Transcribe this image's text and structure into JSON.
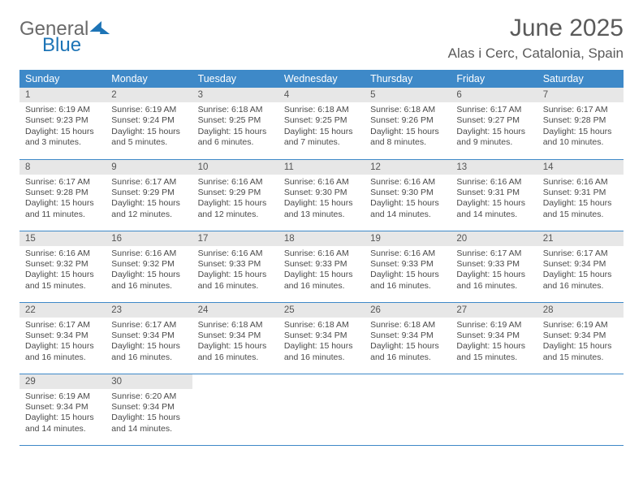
{
  "logo": {
    "part1": "General",
    "part2": "Blue"
  },
  "title": "June 2025",
  "location": "Alas i Cerc, Catalonia, Spain",
  "colors": {
    "header_bg": "#3e89c8",
    "header_text": "#ffffff",
    "daynum_bg": "#e7e7e7",
    "border": "#3e89c8",
    "logo_blue": "#1d74b6"
  },
  "weekdays": [
    "Sunday",
    "Monday",
    "Tuesday",
    "Wednesday",
    "Thursday",
    "Friday",
    "Saturday"
  ],
  "days": [
    {
      "n": 1,
      "sr": "6:19 AM",
      "ss": "9:23 PM",
      "dl": "15 hours and 3 minutes."
    },
    {
      "n": 2,
      "sr": "6:19 AM",
      "ss": "9:24 PM",
      "dl": "15 hours and 5 minutes."
    },
    {
      "n": 3,
      "sr": "6:18 AM",
      "ss": "9:25 PM",
      "dl": "15 hours and 6 minutes."
    },
    {
      "n": 4,
      "sr": "6:18 AM",
      "ss": "9:25 PM",
      "dl": "15 hours and 7 minutes."
    },
    {
      "n": 5,
      "sr": "6:18 AM",
      "ss": "9:26 PM",
      "dl": "15 hours and 8 minutes."
    },
    {
      "n": 6,
      "sr": "6:17 AM",
      "ss": "9:27 PM",
      "dl": "15 hours and 9 minutes."
    },
    {
      "n": 7,
      "sr": "6:17 AM",
      "ss": "9:28 PM",
      "dl": "15 hours and 10 minutes."
    },
    {
      "n": 8,
      "sr": "6:17 AM",
      "ss": "9:28 PM",
      "dl": "15 hours and 11 minutes."
    },
    {
      "n": 9,
      "sr": "6:17 AM",
      "ss": "9:29 PM",
      "dl": "15 hours and 12 minutes."
    },
    {
      "n": 10,
      "sr": "6:16 AM",
      "ss": "9:29 PM",
      "dl": "15 hours and 12 minutes."
    },
    {
      "n": 11,
      "sr": "6:16 AM",
      "ss": "9:30 PM",
      "dl": "15 hours and 13 minutes."
    },
    {
      "n": 12,
      "sr": "6:16 AM",
      "ss": "9:30 PM",
      "dl": "15 hours and 14 minutes."
    },
    {
      "n": 13,
      "sr": "6:16 AM",
      "ss": "9:31 PM",
      "dl": "15 hours and 14 minutes."
    },
    {
      "n": 14,
      "sr": "6:16 AM",
      "ss": "9:31 PM",
      "dl": "15 hours and 15 minutes."
    },
    {
      "n": 15,
      "sr": "6:16 AM",
      "ss": "9:32 PM",
      "dl": "15 hours and 15 minutes."
    },
    {
      "n": 16,
      "sr": "6:16 AM",
      "ss": "9:32 PM",
      "dl": "15 hours and 16 minutes."
    },
    {
      "n": 17,
      "sr": "6:16 AM",
      "ss": "9:33 PM",
      "dl": "15 hours and 16 minutes."
    },
    {
      "n": 18,
      "sr": "6:16 AM",
      "ss": "9:33 PM",
      "dl": "15 hours and 16 minutes."
    },
    {
      "n": 19,
      "sr": "6:16 AM",
      "ss": "9:33 PM",
      "dl": "15 hours and 16 minutes."
    },
    {
      "n": 20,
      "sr": "6:17 AM",
      "ss": "9:33 PM",
      "dl": "15 hours and 16 minutes."
    },
    {
      "n": 21,
      "sr": "6:17 AM",
      "ss": "9:34 PM",
      "dl": "15 hours and 16 minutes."
    },
    {
      "n": 22,
      "sr": "6:17 AM",
      "ss": "9:34 PM",
      "dl": "15 hours and 16 minutes."
    },
    {
      "n": 23,
      "sr": "6:17 AM",
      "ss": "9:34 PM",
      "dl": "15 hours and 16 minutes."
    },
    {
      "n": 24,
      "sr": "6:18 AM",
      "ss": "9:34 PM",
      "dl": "15 hours and 16 minutes."
    },
    {
      "n": 25,
      "sr": "6:18 AM",
      "ss": "9:34 PM",
      "dl": "15 hours and 16 minutes."
    },
    {
      "n": 26,
      "sr": "6:18 AM",
      "ss": "9:34 PM",
      "dl": "15 hours and 16 minutes."
    },
    {
      "n": 27,
      "sr": "6:19 AM",
      "ss": "9:34 PM",
      "dl": "15 hours and 15 minutes."
    },
    {
      "n": 28,
      "sr": "6:19 AM",
      "ss": "9:34 PM",
      "dl": "15 hours and 15 minutes."
    },
    {
      "n": 29,
      "sr": "6:19 AM",
      "ss": "9:34 PM",
      "dl": "15 hours and 14 minutes."
    },
    {
      "n": 30,
      "sr": "6:20 AM",
      "ss": "9:34 PM",
      "dl": "15 hours and 14 minutes."
    }
  ],
  "labels": {
    "sunrise": "Sunrise:",
    "sunset": "Sunset:",
    "daylight": "Daylight:"
  }
}
